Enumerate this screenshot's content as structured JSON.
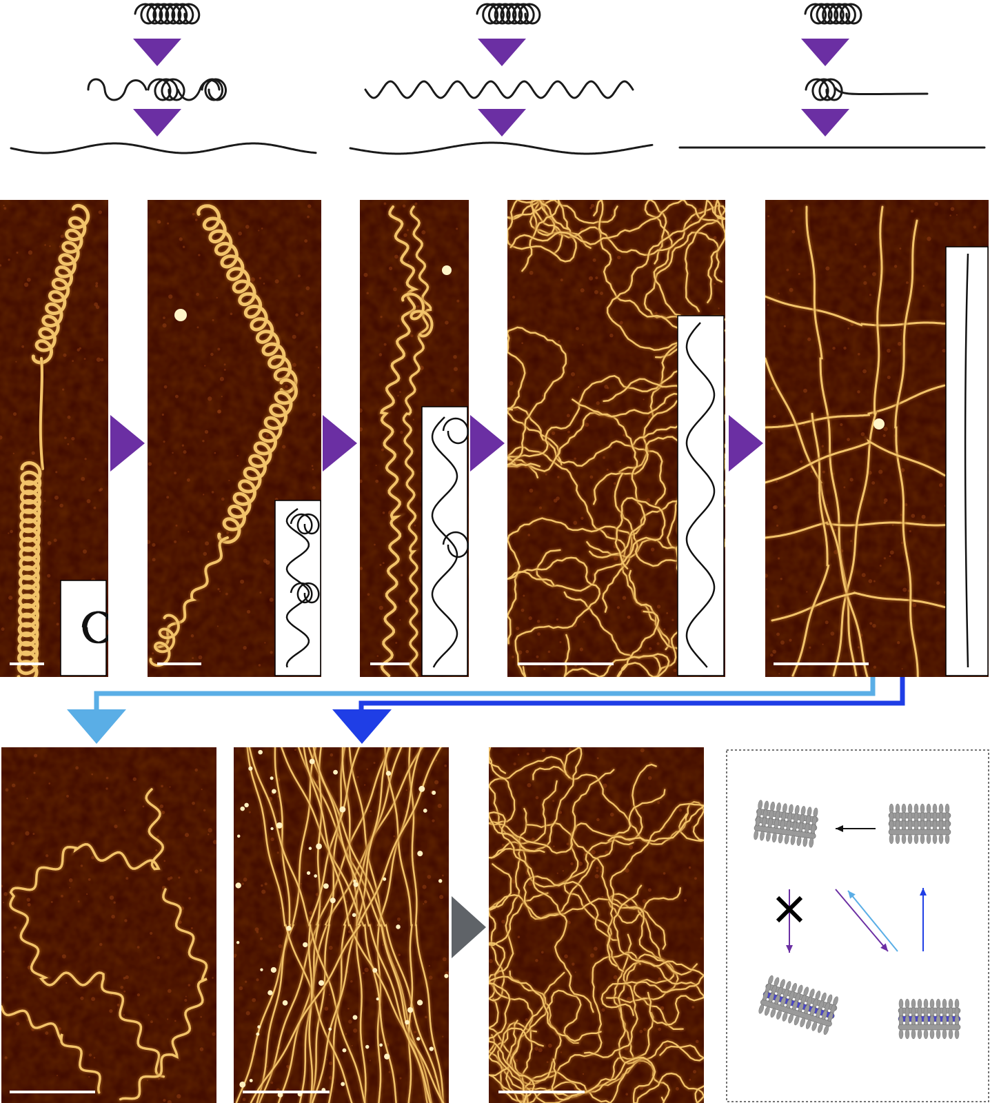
{
  "figure": {
    "colors": {
      "arrow_purple": "#6b2fa3",
      "arrow_light_blue": "#5aaee6",
      "arrow_dark_blue": "#1f3ee6",
      "arrow_gray": "#5f6368",
      "afm_background": "#3c0700",
      "afm_fibril": "#f2c36a",
      "scale_bar": "#ffffff",
      "model_gray": "#9a9a9a",
      "model_blue": "#4a46c8"
    },
    "icons": {
      "transition_arrows": "triangle-arrow-icon",
      "model_blocked_transition": "cross-icon"
    },
    "schematic_pathways": 3,
    "afm_panels_row1": 5,
    "afm_panels_row2": 3
  }
}
